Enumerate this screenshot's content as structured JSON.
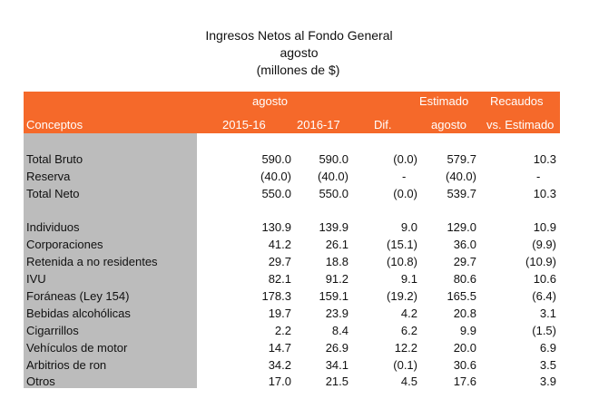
{
  "title": {
    "line1": "Ingresos Netos al Fondo General",
    "line2": "agosto",
    "line3": "(millones de $)"
  },
  "header": {
    "group_agosto": "agosto",
    "estimado": "Estimado",
    "recaudos": "Recaudos",
    "conceptos": "Conceptos",
    "y1": "2015-16",
    "y2": "2016-17",
    "dif": "Dif.",
    "est_agosto": "agosto",
    "vs_estimado": "vs. Estimado"
  },
  "rows": [
    {
      "label": "Total Bruto",
      "v1": "590.0",
      "v2": "590.0",
      "dif": "(0.0)",
      "est": "579.7",
      "rec": "10.3"
    },
    {
      "label": "Reserva",
      "v1": "(40.0)",
      "v2": "(40.0)",
      "dif": "-",
      "est": "(40.0)",
      "rec": "-"
    },
    {
      "label": "Total Neto",
      "v1": "550.0",
      "v2": "550.0",
      "dif": "(0.0)",
      "est": "539.7",
      "rec": "10.3"
    },
    {
      "label": "Individuos",
      "v1": "130.9",
      "v2": "139.9",
      "dif": "9.0",
      "est": "129.0",
      "rec": "10.9"
    },
    {
      "label": "Corporaciones",
      "v1": "41.2",
      "v2": "26.1",
      "dif": "(15.1)",
      "est": "36.0",
      "rec": "(9.9)"
    },
    {
      "label": "Retenida a no residentes",
      "v1": "29.7",
      "v2": "18.8",
      "dif": "(10.8)",
      "est": "29.7",
      "rec": "(10.9)"
    },
    {
      "label": "IVU",
      "v1": "82.1",
      "v2": "91.2",
      "dif": "9.1",
      "est": "80.6",
      "rec": "10.6"
    },
    {
      "label": "Foráneas (Ley 154)",
      "v1": "178.3",
      "v2": "159.1",
      "dif": "(19.2)",
      "est": "165.5",
      "rec": "(6.4)"
    },
    {
      "label": "Bebidas alcohólicas",
      "v1": "19.7",
      "v2": "23.9",
      "dif": "4.2",
      "est": "20.8",
      "rec": "3.1"
    },
    {
      "label": "Cigarrillos",
      "v1": "2.2",
      "v2": "8.4",
      "dif": "6.2",
      "est": "9.9",
      "rec": "(1.5)"
    },
    {
      "label": "Vehículos de motor",
      "v1": "14.7",
      "v2": "26.9",
      "dif": "12.2",
      "est": "20.0",
      "rec": "6.9"
    },
    {
      "label": "Arbitrios de ron",
      "v1": "34.2",
      "v2": "34.1",
      "dif": "(0.1)",
      "est": "30.6",
      "rec": "3.5"
    },
    {
      "label": "Otros",
      "v1": "17.0",
      "v2": "21.5",
      "dif": "4.5",
      "est": "17.6",
      "rec": "3.9"
    }
  ]
}
